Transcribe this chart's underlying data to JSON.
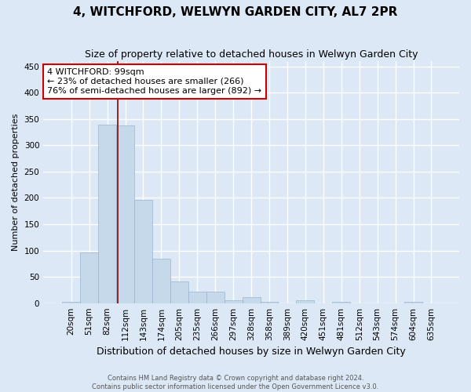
{
  "title": "4, WITCHFORD, WELWYN GARDEN CITY, AL7 2PR",
  "subtitle": "Size of property relative to detached houses in Welwyn Garden City",
  "xlabel": "Distribution of detached houses by size in Welwyn Garden City",
  "ylabel": "Number of detached properties",
  "footer_line1": "Contains HM Land Registry data © Crown copyright and database right 2024.",
  "footer_line2": "Contains public sector information licensed under the Open Government Licence v3.0.",
  "bar_labels": [
    "20sqm",
    "51sqm",
    "82sqm",
    "112sqm",
    "143sqm",
    "174sqm",
    "205sqm",
    "235sqm",
    "266sqm",
    "297sqm",
    "328sqm",
    "358sqm",
    "389sqm",
    "420sqm",
    "451sqm",
    "481sqm",
    "512sqm",
    "543sqm",
    "574sqm",
    "604sqm",
    "635sqm"
  ],
  "bar_values": [
    2,
    97,
    340,
    338,
    196,
    84,
    41,
    22,
    22,
    5,
    11,
    2,
    0,
    5,
    0,
    2,
    0,
    0,
    0,
    2,
    0
  ],
  "bar_color": "#c6d9ea",
  "bar_edge_color": "#9ab4cc",
  "marker_line_color": "#8b0000",
  "ylim": [
    0,
    460
  ],
  "yticks": [
    0,
    50,
    100,
    150,
    200,
    250,
    300,
    350,
    400,
    450
  ],
  "annotation_text": "4 WITCHFORD: 99sqm\n← 23% of detached houses are smaller (266)\n76% of semi-detached houses are larger (892) →",
  "annotation_box_color": "#ffffff",
  "annotation_box_edge_color": "#cc0000",
  "bg_color": "#dce8f5",
  "plot_bg_color": "#dce8f5",
  "grid_color": "#ffffff",
  "title_fontsize": 11,
  "subtitle_fontsize": 9,
  "ylabel_fontsize": 8,
  "xlabel_fontsize": 9,
  "tick_fontsize": 7.5,
  "annotation_fontsize": 8,
  "footer_fontsize": 6
}
